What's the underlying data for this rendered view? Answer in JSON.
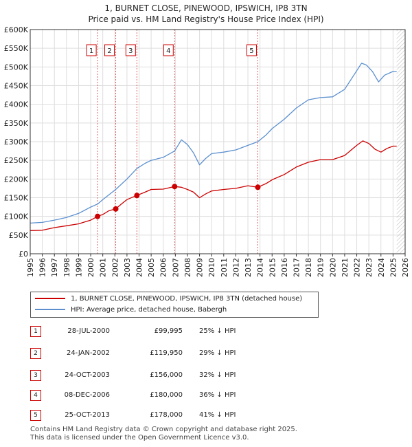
{
  "chart_data": {
    "type": "line",
    "title": "1, BURNET CLOSE, PINEWOOD, IPSWICH, IP8 3TN",
    "subtitle": "Price paid vs. HM Land Registry's House Price Index (HPI)",
    "xlim": [
      1995,
      2026
    ],
    "ylim": [
      0,
      600000
    ],
    "x_ticks": [
      "1995",
      "1996",
      "1997",
      "1998",
      "1999",
      "2000",
      "2001",
      "2002",
      "2003",
      "2004",
      "2005",
      "2006",
      "2007",
      "2008",
      "2009",
      "2010",
      "2011",
      "2012",
      "2013",
      "2014",
      "2015",
      "2016",
      "2017",
      "2018",
      "2019",
      "2020",
      "2021",
      "2022",
      "2023",
      "2024",
      "2025",
      "2026"
    ],
    "y_ticks": [
      {
        "value": 0,
        "label": "£0"
      },
      {
        "value": 50000,
        "label": "£50K"
      },
      {
        "value": 100000,
        "label": "£100K"
      },
      {
        "value": 150000,
        "label": "£150K"
      },
      {
        "value": 200000,
        "label": "£200K"
      },
      {
        "value": 250000,
        "label": "£250K"
      },
      {
        "value": 300000,
        "label": "£300K"
      },
      {
        "value": 350000,
        "label": "£350K"
      },
      {
        "value": 400000,
        "label": "£400K"
      },
      {
        "value": 450000,
        "label": "£450K"
      },
      {
        "value": 500000,
        "label": "£500K"
      },
      {
        "value": 550000,
        "label": "£550K"
      },
      {
        "value": 600000,
        "label": "£600K"
      }
    ],
    "series": [
      {
        "name": "1, BURNET CLOSE, PINEWOOD, IPSWICH, IP8 3TN (detached house)",
        "color": "#cc0000",
        "points": [
          [
            1995.0,
            62000
          ],
          [
            1996.0,
            63000
          ],
          [
            1997.0,
            70000
          ],
          [
            1998.0,
            75000
          ],
          [
            1999.0,
            80000
          ],
          [
            2000.0,
            90000
          ],
          [
            2000.57,
            99995
          ],
          [
            2001.0,
            105000
          ],
          [
            2001.5,
            115000
          ],
          [
            2002.07,
            119950
          ],
          [
            2002.5,
            132000
          ],
          [
            2003.0,
            145000
          ],
          [
            2003.82,
            156000
          ],
          [
            2004.5,
            165000
          ],
          [
            2005.0,
            172000
          ],
          [
            2006.0,
            173000
          ],
          [
            2006.94,
            180000
          ],
          [
            2007.5,
            178000
          ],
          [
            2008.0,
            172000
          ],
          [
            2008.5,
            165000
          ],
          [
            2009.0,
            150000
          ],
          [
            2009.5,
            160000
          ],
          [
            2010.0,
            168000
          ],
          [
            2011.0,
            172000
          ],
          [
            2012.0,
            175000
          ],
          [
            2013.0,
            182000
          ],
          [
            2013.82,
            178000
          ],
          [
            2014.5,
            188000
          ],
          [
            2015.0,
            198000
          ],
          [
            2016.0,
            212000
          ],
          [
            2017.0,
            232000
          ],
          [
            2018.0,
            245000
          ],
          [
            2019.0,
            252000
          ],
          [
            2020.0,
            252000
          ],
          [
            2021.0,
            263000
          ],
          [
            2022.0,
            290000
          ],
          [
            2022.5,
            302000
          ],
          [
            2023.0,
            295000
          ],
          [
            2023.5,
            280000
          ],
          [
            2024.0,
            272000
          ],
          [
            2024.5,
            282000
          ],
          [
            2025.0,
            288000
          ],
          [
            2025.3,
            288000
          ]
        ]
      },
      {
        "name": "HPI: Average price, detached house, Babergh",
        "color": "#5b8fd0",
        "points": [
          [
            1995.0,
            82000
          ],
          [
            1996.0,
            84000
          ],
          [
            1997.0,
            90000
          ],
          [
            1998.0,
            97000
          ],
          [
            1999.0,
            108000
          ],
          [
            2000.0,
            125000
          ],
          [
            2000.57,
            133000
          ],
          [
            2001.0,
            145000
          ],
          [
            2002.07,
            172000
          ],
          [
            2003.0,
            200000
          ],
          [
            2003.82,
            228000
          ],
          [
            2004.5,
            242000
          ],
          [
            2005.0,
            250000
          ],
          [
            2006.0,
            258000
          ],
          [
            2006.94,
            275000
          ],
          [
            2007.5,
            305000
          ],
          [
            2008.0,
            292000
          ],
          [
            2008.5,
            270000
          ],
          [
            2009.0,
            238000
          ],
          [
            2009.5,
            255000
          ],
          [
            2010.0,
            268000
          ],
          [
            2011.0,
            272000
          ],
          [
            2012.0,
            278000
          ],
          [
            2013.0,
            290000
          ],
          [
            2013.82,
            300000
          ],
          [
            2014.5,
            318000
          ],
          [
            2015.0,
            335000
          ],
          [
            2016.0,
            360000
          ],
          [
            2017.0,
            390000
          ],
          [
            2018.0,
            412000
          ],
          [
            2019.0,
            418000
          ],
          [
            2020.0,
            420000
          ],
          [
            2021.0,
            440000
          ],
          [
            2022.0,
            490000
          ],
          [
            2022.4,
            510000
          ],
          [
            2022.8,
            505000
          ],
          [
            2023.3,
            488000
          ],
          [
            2023.8,
            460000
          ],
          [
            2024.3,
            478000
          ],
          [
            2025.0,
            488000
          ],
          [
            2025.3,
            488000
          ]
        ]
      }
    ],
    "markers": [
      {
        "label": "1",
        "x": 2000.57
      },
      {
        "label": "2",
        "x": 2002.07
      },
      {
        "label": "3",
        "x": 2003.82
      },
      {
        "label": "4",
        "x": 2006.94
      },
      {
        "label": "5",
        "x": 2013.82
      }
    ],
    "hatch_from": 2025.3,
    "legend_position": "below"
  },
  "legend": {
    "property": "1, BURNET CLOSE, PINEWOOD, IPSWICH, IP8 3TN (detached house)",
    "hpi": "HPI: Average price, detached house, Babergh"
  },
  "transactions": [
    {
      "num": "1",
      "date": "28-JUL-2000",
      "price": "£99,995",
      "hpi": "25% ↓ HPI"
    },
    {
      "num": "2",
      "date": "24-JAN-2002",
      "price": "£119,950",
      "hpi": "29% ↓ HPI"
    },
    {
      "num": "3",
      "date": "24-OCT-2003",
      "price": "£156,000",
      "hpi": "32% ↓ HPI"
    },
    {
      "num": "4",
      "date": "08-DEC-2006",
      "price": "£180,000",
      "hpi": "36% ↓ HPI"
    },
    {
      "num": "5",
      "date": "25-OCT-2013",
      "price": "£178,000",
      "hpi": "41% ↓ HPI"
    }
  ],
  "footer": {
    "line1": "Contains HM Land Registry data © Crown copyright and database right 2025.",
    "line2": "This data is licensed under the Open Government Licence v3.0."
  }
}
